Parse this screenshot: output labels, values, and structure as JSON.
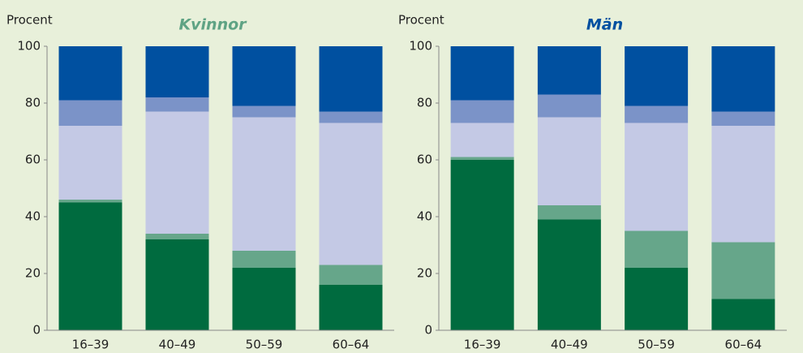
{
  "chart_data": [
    {
      "type": "stacked_bar",
      "title": "Kvinnor",
      "title_color": "#5fa384",
      "y_label": "Procent",
      "categories": [
        "16–39",
        "40–49",
        "50–59",
        "60–64"
      ],
      "ylim": [
        0,
        100
      ],
      "yticks": [
        0,
        20,
        40,
        60,
        80,
        100
      ],
      "grid": false,
      "series": [
        {
          "color": "#006b3f",
          "values": [
            45,
            32,
            22,
            16
          ]
        },
        {
          "color": "#66a68a",
          "values": [
            1,
            2,
            6,
            7
          ]
        },
        {
          "color": "#c4c9e5",
          "values": [
            26,
            43,
            47,
            50
          ]
        },
        {
          "color": "#7b93c8",
          "values": [
            9,
            5,
            4,
            4
          ]
        },
        {
          "color": "#0050a0",
          "values": [
            19,
            18,
            21,
            23
          ]
        }
      ]
    },
    {
      "type": "stacked_bar",
      "title": "Män",
      "title_color": "#0050a0",
      "y_label": "Procent",
      "categories": [
        "16–39",
        "40–49",
        "50–59",
        "60–64"
      ],
      "ylim": [
        0,
        100
      ],
      "yticks": [
        0,
        20,
        40,
        60,
        80,
        100
      ],
      "grid": false,
      "series": [
        {
          "color": "#006b3f",
          "values": [
            60,
            39,
            22,
            11
          ]
        },
        {
          "color": "#66a68a",
          "values": [
            1,
            5,
            13,
            20
          ]
        },
        {
          "color": "#c4c9e5",
          "values": [
            12,
            31,
            38,
            41
          ]
        },
        {
          "color": "#7b93c8",
          "values": [
            8,
            8,
            6,
            5
          ]
        },
        {
          "color": "#0050a0",
          "values": [
            19,
            17,
            21,
            23
          ]
        }
      ]
    }
  ]
}
